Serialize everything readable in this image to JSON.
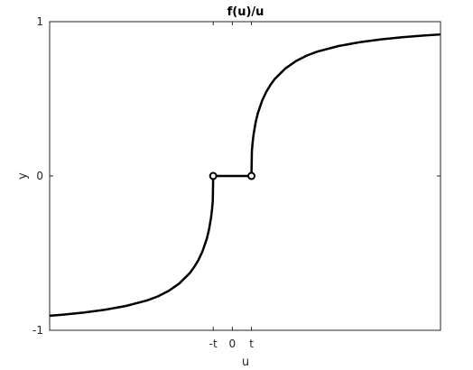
{
  "chart_data": {
    "type": "line",
    "title": "f(u)/u",
    "xlabel": "u",
    "ylabel": "y",
    "xlim": [
      -4.3,
      4.9
    ],
    "ylim": [
      -1,
      1
    ],
    "x_ticks": [
      {
        "value": -0.45,
        "label": "-t"
      },
      {
        "value": 0,
        "label": "0"
      },
      {
        "value": 0.45,
        "label": "t"
      }
    ],
    "y_ticks": [
      {
        "value": -1,
        "label": "-1"
      },
      {
        "value": 0,
        "label": "0"
      },
      {
        "value": 1,
        "label": "1"
      }
    ],
    "grid": false,
    "line_color": "#000000",
    "t": 0.45,
    "series": [
      {
        "values": [
          [
            -4.3,
            -0.906
          ],
          [
            -4.0,
            -0.899
          ],
          [
            -3.5,
            -0.885
          ],
          [
            -3.0,
            -0.867
          ],
          [
            -2.5,
            -0.842
          ],
          [
            -2.0,
            -0.806
          ],
          [
            -1.75,
            -0.78
          ],
          [
            -1.5,
            -0.745
          ],
          [
            -1.25,
            -0.697
          ],
          [
            -1.0,
            -0.629
          ],
          [
            -0.9,
            -0.591
          ],
          [
            -0.8,
            -0.546
          ],
          [
            -0.7,
            -0.487
          ],
          [
            -0.6,
            -0.406
          ],
          [
            -0.55,
            -0.349
          ],
          [
            -0.5,
            -0.269
          ],
          [
            -0.475,
            -0.21
          ],
          [
            -0.46,
            -0.16
          ],
          [
            -0.45,
            0.0
          ],
          [
            0.45,
            0.0
          ],
          [
            0.46,
            0.16
          ],
          [
            0.475,
            0.21
          ],
          [
            0.5,
            0.269
          ],
          [
            0.55,
            0.349
          ],
          [
            0.6,
            0.406
          ],
          [
            0.7,
            0.487
          ],
          [
            0.8,
            0.546
          ],
          [
            0.9,
            0.591
          ],
          [
            1.0,
            0.629
          ],
          [
            1.25,
            0.697
          ],
          [
            1.5,
            0.745
          ],
          [
            1.75,
            0.78
          ],
          [
            2.0,
            0.806
          ],
          [
            2.5,
            0.842
          ],
          [
            3.0,
            0.867
          ],
          [
            3.5,
            0.885
          ],
          [
            4.0,
            0.899
          ],
          [
            4.5,
            0.91
          ],
          [
            4.9,
            0.917
          ]
        ]
      }
    ],
    "open_markers": [
      [
        -0.45,
        0
      ],
      [
        0.45,
        0
      ]
    ]
  }
}
